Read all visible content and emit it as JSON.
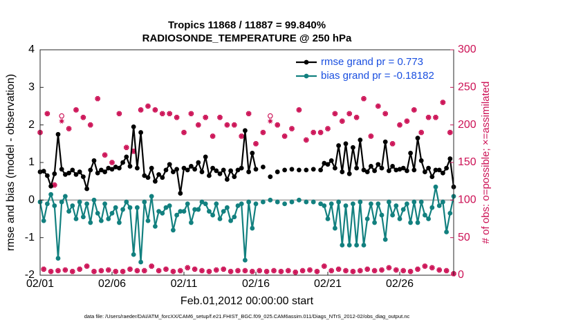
{
  "chart_data": {
    "type": "line",
    "title": [
      "Tropics 11868 / 11887 = 99.840%",
      "RADIOSONDE_TEMPERATURE @ 250 hPa"
    ],
    "ylabel": "rmse and bias (model - observation)",
    "y2label": "# of obs: o=possible; ×=assimilated",
    "xlabel": "Feb.01,2012 00:00:00 start",
    "footnote": "data file: /Users/raeder/DAI/ATM_forcXX/CAM6_setup/f.e21.FHIST_BGC.f09_025.CAM6assim.011/Diags_NTrS_2012-02/obs_diag_output.nc",
    "xlim": [
      0,
      28.75
    ],
    "xticks": [
      {
        "value": 0,
        "label": "02/01"
      },
      {
        "value": 5,
        "label": "02/06"
      },
      {
        "value": 10,
        "label": "02/11"
      },
      {
        "value": 15,
        "label": "02/16"
      },
      {
        "value": 20,
        "label": "02/21"
      },
      {
        "value": 25,
        "label": "02/26"
      }
    ],
    "ylim": [
      -2,
      4
    ],
    "yticks": [
      -2,
      -1,
      0,
      1,
      2,
      3,
      4
    ],
    "y2lim": [
      0,
      300
    ],
    "y2ticks": [
      0,
      50,
      100,
      150,
      200,
      250,
      300
    ],
    "zero_line_color": "#b0b0b0",
    "legend": "upper right",
    "x": [
      0,
      0.25,
      0.5,
      0.75,
      1,
      1.25,
      1.5,
      1.75,
      2,
      2.25,
      2.5,
      2.75,
      3,
      3.25,
      3.5,
      3.75,
      4,
      4.25,
      4.5,
      4.75,
      5,
      5.25,
      5.5,
      5.75,
      6,
      6.25,
      6.5,
      6.75,
      7,
      7.25,
      7.5,
      7.75,
      8,
      8.25,
      8.5,
      8.75,
      9,
      9.25,
      9.5,
      9.75,
      10,
      10.25,
      10.5,
      10.75,
      11,
      11.25,
      11.5,
      11.75,
      12,
      12.25,
      12.5,
      12.75,
      13,
      13.25,
      13.5,
      13.75,
      14,
      14.25,
      14.5,
      14.75,
      15,
      15.25,
      15.5,
      15.75,
      16,
      16.25,
      16.5,
      16.75,
      17,
      17.25,
      17.5,
      17.75,
      18,
      18.25,
      18.5,
      18.75,
      19,
      19.25,
      19.5,
      19.75,
      20,
      20.25,
      20.5,
      20.75,
      21,
      21.25,
      21.5,
      21.75,
      22,
      22.25,
      22.5,
      22.75,
      23,
      23.25,
      23.5,
      23.75,
      24,
      24.25,
      24.5,
      24.75,
      25,
      25.25,
      25.5,
      25.75,
      26,
      26.25,
      26.5,
      26.75,
      27,
      27.25,
      27.5,
      27.75,
      28,
      28.25,
      28.5,
      28.75
    ],
    "series": [
      {
        "name": "rmse grand pr = 0.773",
        "color": "#000000",
        "marker": "dot",
        "values": [
          0.75,
          0.77,
          0.65,
          0.37,
          0.7,
          1.75,
          0.82,
          0.68,
          0.72,
          0.8,
          0.68,
          0.75,
          0.62,
          0.3,
          0.8,
          1.05,
          0.72,
          0.8,
          0.75,
          0.85,
          0.82,
          0.88,
          0.85,
          1.0,
          1.15,
          0.9,
          1.95,
          0.85,
          1.8,
          0.65,
          0.6,
          0.85,
          0.5,
          0.68,
          0.6,
          0.8,
          0.95,
          0.75,
          0.82,
          0.18,
          0.85,
          0.8,
          0.9,
          0.82,
          1.0,
          0.75,
          1.15,
          0.65,
          0.85,
          0.78,
          0.7,
          0.8,
          0.55,
          0.78,
          0.62,
          0.8,
          0.85,
          1.85,
          0.75,
          1.25,
          0.82,
          null,
          0.88,
          null,
          0.62,
          null,
          0.75,
          null,
          0.8,
          null,
          0.82,
          null,
          0.8,
          null,
          0.8,
          null,
          0.82,
          null,
          0.8,
          0.98,
          0.95,
          1.05,
          0.85,
          1.45,
          0.75,
          1.5,
          0.7,
          1.4,
          0.85,
          1.6,
          0.8,
          0.75,
          0.9,
          0.78,
          0.95,
          0.85,
          1.55,
          0.78,
          0.9,
          0.8,
          0.82,
          0.85,
          0.78,
          1.25,
          0.8,
          1.65,
          1.05,
          0.75,
          0.85,
          0.62,
          0.8,
          0.8,
          0.72,
          0.85,
          1.1,
          0.35
        ]
      },
      {
        "name": "bias grand pr = -0.18182",
        "color": "#12807f",
        "marker": "dot",
        "values": [
          -0.05,
          -0.55,
          -0.1,
          0.15,
          -0.15,
          -1.55,
          -0.05,
          0.1,
          -0.3,
          -0.15,
          -0.5,
          -0.05,
          -0.45,
          -0.1,
          -0.6,
          0.0,
          -0.35,
          -0.55,
          -0.1,
          -0.5,
          -0.35,
          -0.2,
          -0.6,
          -0.25,
          -0.05,
          -0.2,
          -1.45,
          -0.2,
          -1.65,
          -0.05,
          -0.55,
          0.1,
          -0.7,
          -0.3,
          -0.35,
          -0.2,
          -0.15,
          -0.8,
          -0.4,
          -0.3,
          -0.3,
          -0.1,
          -0.6,
          -0.25,
          -0.25,
          -0.05,
          -0.1,
          -0.3,
          -0.4,
          -0.1,
          -0.5,
          -0.3,
          -0.2,
          -0.55,
          -0.45,
          -0.15,
          -0.1,
          -1.6,
          -0.05,
          -0.75,
          -0.1,
          null,
          -0.05,
          null,
          0.0,
          null,
          -0.05,
          null,
          -0.1,
          null,
          -0.05,
          null,
          0.0,
          null,
          -0.05,
          null,
          -0.05,
          null,
          -0.1,
          -0.15,
          -0.5,
          -0.1,
          -0.75,
          -0.05,
          -1.2,
          -0.15,
          -1.2,
          -0.1,
          -1.2,
          -0.05,
          -1.2,
          -0.5,
          -0.1,
          -0.6,
          -0.1,
          -0.4,
          -1.05,
          -0.05,
          -0.4,
          -0.15,
          -0.5,
          -0.25,
          -0.1,
          -0.6,
          -0.05,
          -0.6,
          -0.05,
          -0.4,
          -0.5,
          -0.2,
          0.35,
          -0.15,
          -0.05,
          -0.85,
          -0.35,
          0.1
        ]
      },
      {
        "color": "#cc1155",
        "marker": "o",
        "axis": "y2",
        "values": [
          190,
          8,
          215,
          5,
          120,
          6,
          212,
          7,
          195,
          5,
          220,
          8,
          210,
          12,
          200,
          5,
          235,
          6,
          160,
          7,
          150,
          5,
          215,
          5,
          170,
          8,
          165,
          6,
          220,
          6,
          225,
          12,
          220,
          6,
          215,
          8,
          215,
          5,
          210,
          6,
          190,
          10,
          215,
          8,
          200,
          6,
          210,
          5,
          185,
          7,
          210,
          8,
          200,
          5,
          200,
          6,
          185,
          6,
          215,
          5,
          175,
          6,
          190,
          5,
          212,
          6,
          200,
          5,
          185,
          6,
          195,
          4,
          220,
          6,
          180,
          7,
          190,
          5,
          190,
          12,
          195,
          6,
          215,
          8,
          205,
          6,
          215,
          5,
          210,
          6,
          235,
          8,
          185,
          6,
          225,
          7,
          215,
          10,
          175,
          7,
          200,
          6,
          205,
          5,
          220,
          8,
          190,
          12,
          210,
          10,
          210,
          7,
          230,
          6,
          190,
          2
        ]
      },
      {
        "color": "#cc1155",
        "marker": "star",
        "axis": "y2",
        "values": [
          190,
          8,
          215,
          5,
          120,
          6,
          205,
          7,
          195,
          5,
          220,
          8,
          210,
          12,
          200,
          5,
          235,
          6,
          160,
          7,
          150,
          5,
          215,
          5,
          170,
          8,
          165,
          6,
          220,
          6,
          225,
          12,
          220,
          6,
          215,
          8,
          215,
          5,
          210,
          6,
          190,
          10,
          215,
          8,
          200,
          6,
          210,
          5,
          185,
          7,
          210,
          8,
          200,
          5,
          200,
          6,
          185,
          6,
          215,
          5,
          175,
          6,
          190,
          5,
          205,
          6,
          200,
          5,
          185,
          6,
          195,
          4,
          220,
          6,
          180,
          7,
          190,
          5,
          190,
          12,
          195,
          6,
          215,
          8,
          205,
          6,
          215,
          5,
          210,
          6,
          235,
          8,
          185,
          6,
          225,
          7,
          215,
          10,
          175,
          7,
          200,
          6,
          205,
          5,
          220,
          8,
          190,
          12,
          210,
          10,
          210,
          7,
          230,
          6,
          190,
          2
        ]
      }
    ]
  }
}
